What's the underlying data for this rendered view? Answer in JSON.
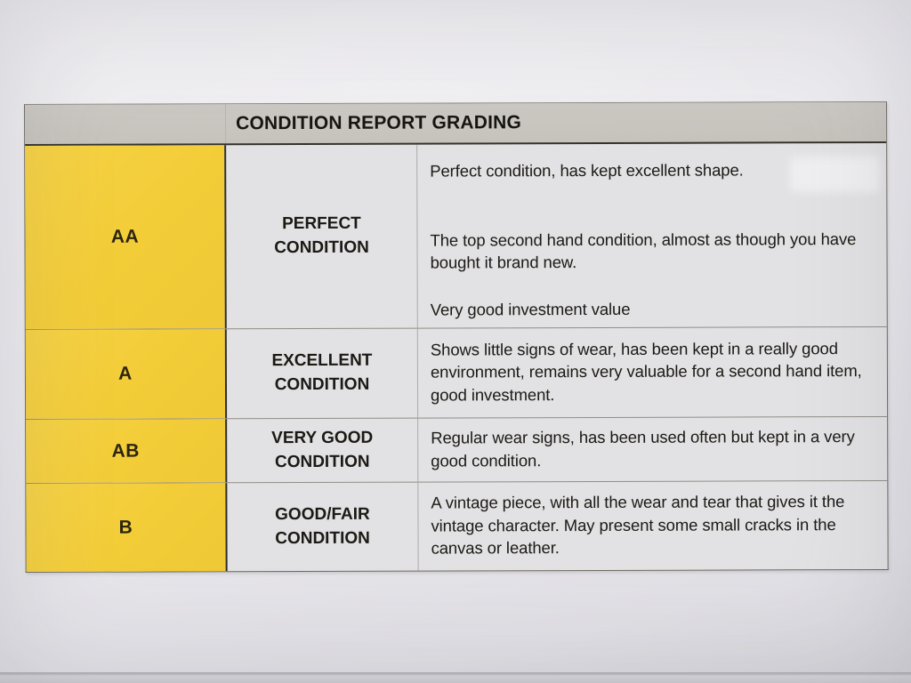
{
  "table": {
    "header": "CONDITION REPORT GRADING",
    "rows": [
      {
        "grade": "AA",
        "condition": "PERFECT CONDITION",
        "description_paragraphs": [
          "Perfect condition, has kept excellent shape.",
          "The top second hand condition, almost as though you have bought it brand new.",
          "Very good investment value"
        ]
      },
      {
        "grade": "A",
        "condition": "EXCELLENT CONDITION",
        "description_paragraphs": [
          "Shows little signs of wear, has been kept in a really good environment, remains very valuable for a second hand item, good investment."
        ]
      },
      {
        "grade": "AB",
        "condition": "VERY GOOD CONDITION",
        "description_paragraphs": [
          "Regular wear signs, has been used often but kept in a very good condition."
        ]
      },
      {
        "grade": "B",
        "condition": "GOOD/FAIR CONDITION",
        "description_paragraphs": [
          "A vintage piece, with all the wear and tear that gives it the vintage character. May present some small cracks in the canvas or leather."
        ]
      }
    ]
  },
  "colors": {
    "grade_cell_yellow": "#f3cd38",
    "header_gray": "#c8c4bf",
    "cell_background": "#e2e1e3",
    "paper_background": "#ebeaee",
    "text": "#1b1a15"
  }
}
